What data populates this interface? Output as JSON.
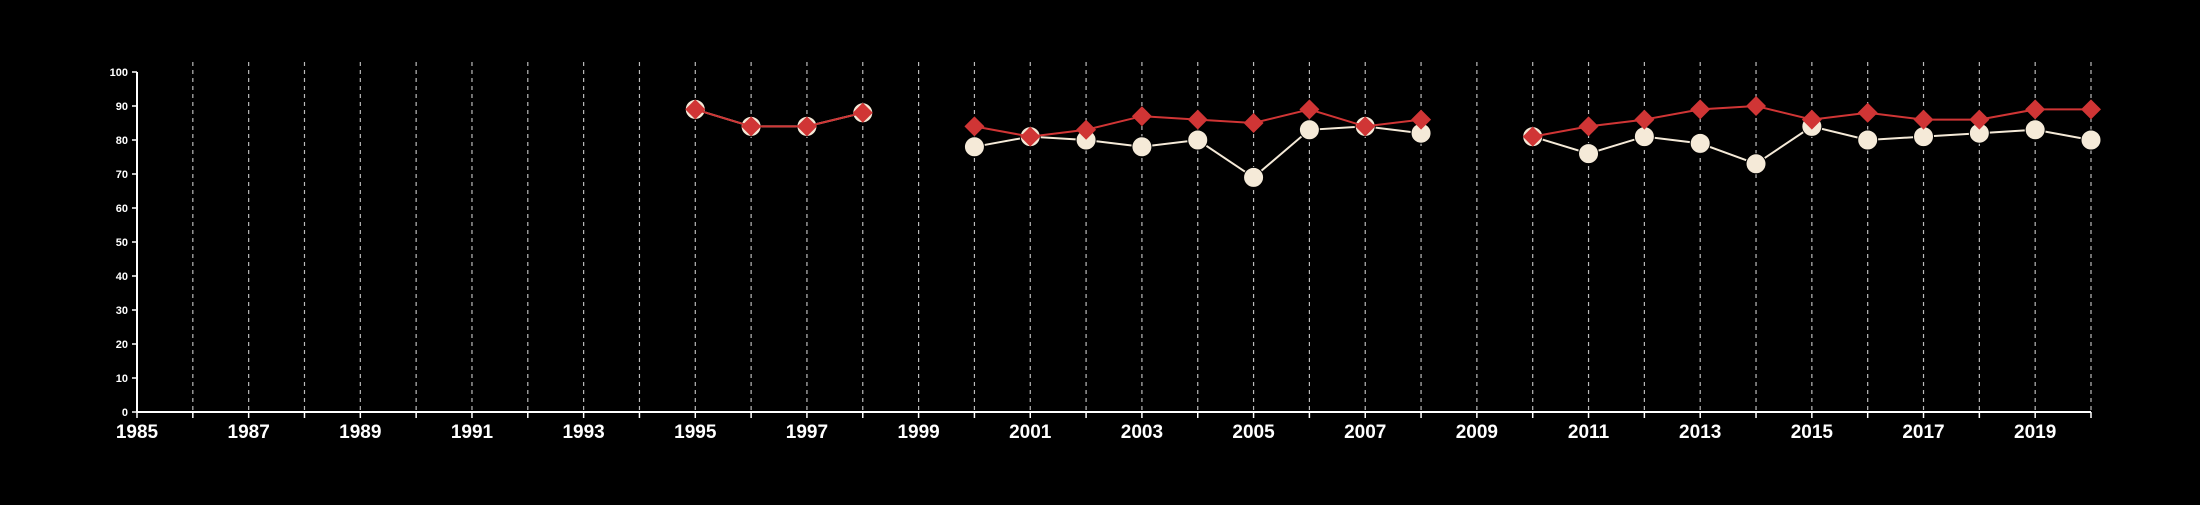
{
  "chart_data": {
    "type": "line",
    "title": "",
    "xlabel": "",
    "ylabel": "",
    "xlim": [
      1985,
      2020
    ],
    "ylim": [
      0,
      100
    ],
    "x_ticks": [
      1985,
      1987,
      1989,
      1991,
      1993,
      1995,
      1997,
      1999,
      2001,
      2003,
      2005,
      2007,
      2009,
      2011,
      2013,
      2015,
      2017,
      2019
    ],
    "y_ticks": [
      0,
      10,
      20,
      30,
      40,
      50,
      60,
      70,
      80,
      90,
      100
    ],
    "vertical_grid_years": [
      1986,
      1987,
      1988,
      1989,
      1990,
      1991,
      1992,
      1993,
      1994,
      1995,
      1996,
      1997,
      1998,
      1999,
      2000,
      2001,
      2002,
      2003,
      2004,
      2005,
      2006,
      2007,
      2008,
      2009,
      2010,
      2011,
      2012,
      2013,
      2014,
      2015,
      2016,
      2017,
      2018,
      2019,
      2020
    ],
    "grid": "vertical-dashed",
    "legend": "none",
    "colors": {
      "background": "#000000",
      "axis": "#ffffff",
      "grid": "#bbbbbb",
      "series_circle": "#f5ead8",
      "series_diamond": "#d03535"
    },
    "series": [
      {
        "marker": "circle",
        "color": "#f5ead8",
        "x": [
          1995,
          1996,
          1997,
          1998,
          2000,
          2001,
          2002,
          2003,
          2004,
          2005,
          2006,
          2007,
          2008,
          2010,
          2011,
          2012,
          2013,
          2014,
          2015,
          2016,
          2017,
          2018,
          2019,
          2020
        ],
        "y": [
          89,
          84,
          84,
          88,
          78,
          81,
          80,
          78,
          80,
          69,
          83,
          84,
          82,
          81,
          76,
          81,
          79,
          73,
          84,
          80,
          81,
          82,
          83,
          80
        ]
      },
      {
        "marker": "diamond",
        "color": "#d03535",
        "x": [
          1995,
          1996,
          1997,
          1998,
          2000,
          2001,
          2002,
          2003,
          2004,
          2005,
          2006,
          2007,
          2008,
          2010,
          2011,
          2012,
          2013,
          2014,
          2015,
          2016,
          2017,
          2018,
          2019,
          2020
        ],
        "y": [
          89,
          84,
          84,
          88,
          84,
          81,
          83,
          87,
          86,
          85,
          89,
          84,
          86,
          81,
          84,
          86,
          89,
          90,
          86,
          88,
          86,
          86,
          89,
          89
        ]
      }
    ]
  }
}
